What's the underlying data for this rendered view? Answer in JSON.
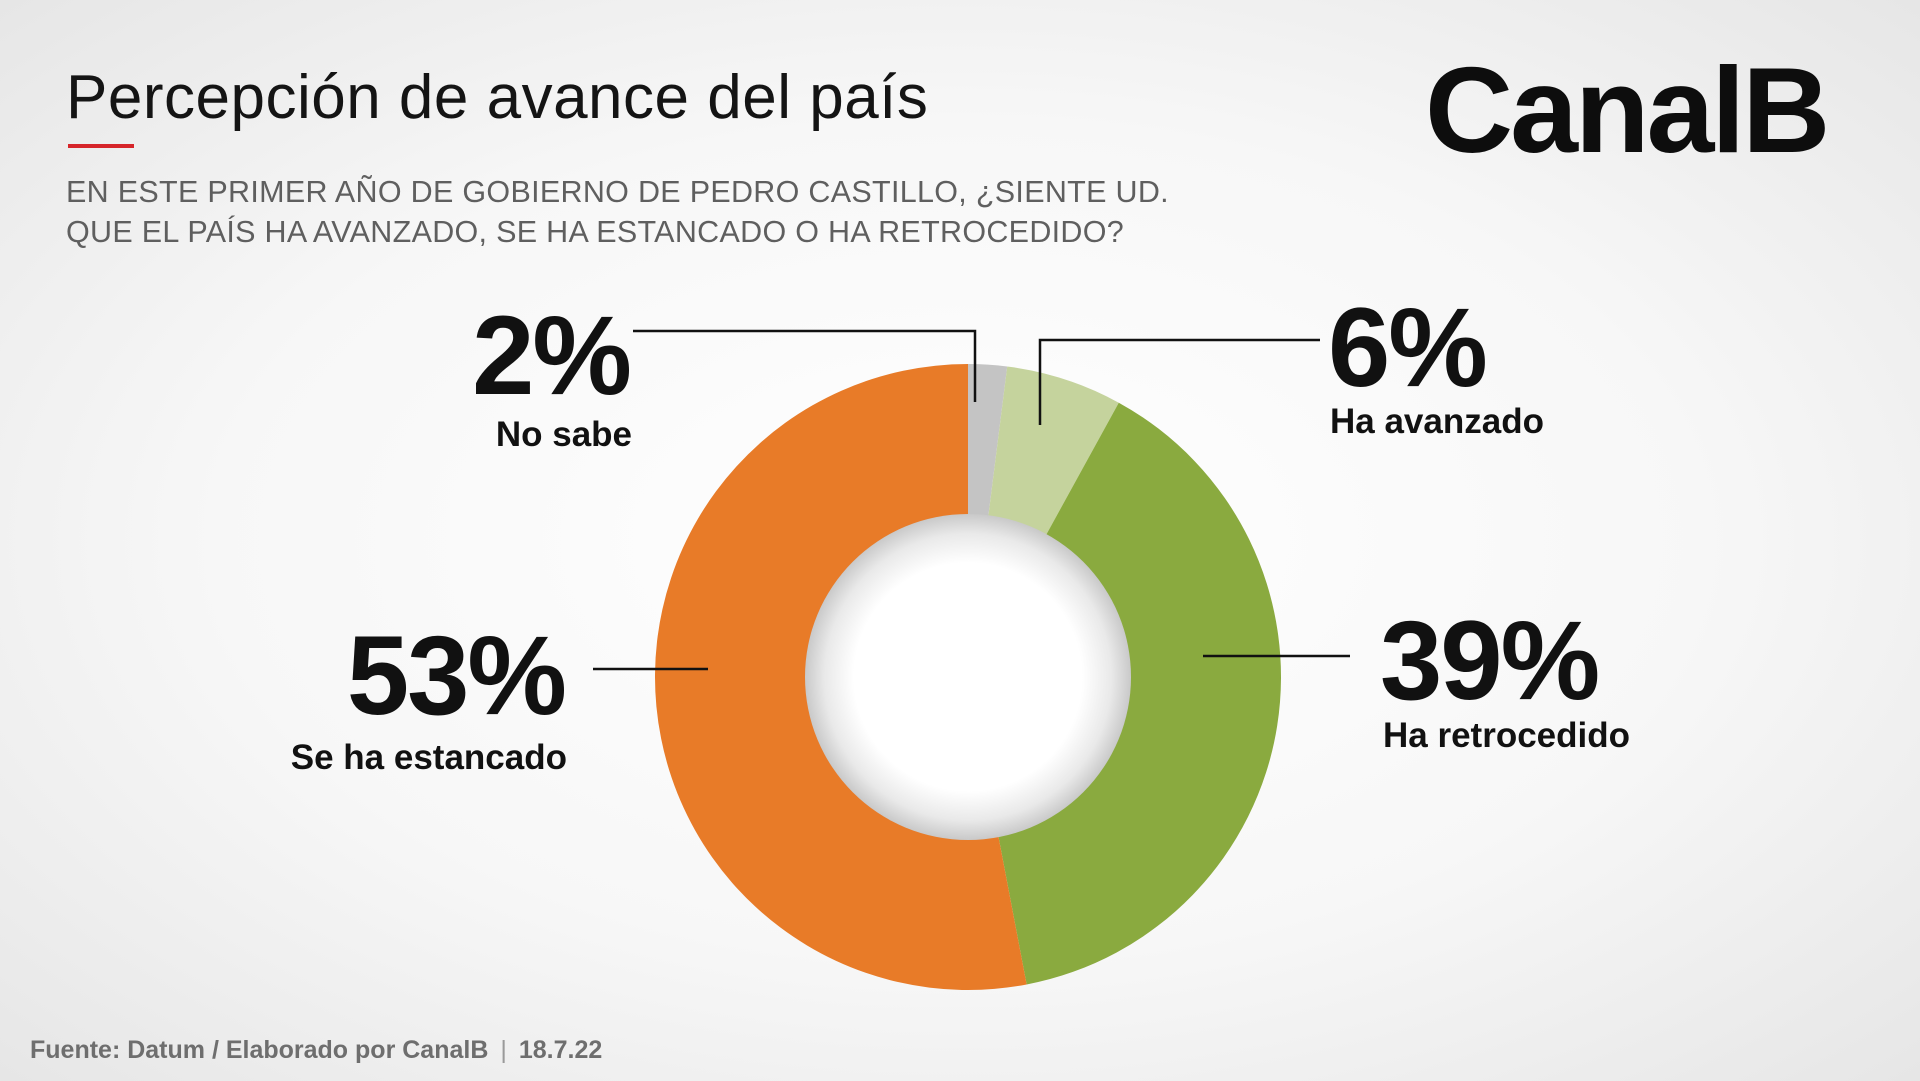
{
  "header": {
    "title": "Percepción de avance del país",
    "subtitle_line1": "EN ESTE PRIMER AÑO DE GOBIERNO DE PEDRO CASTILLO, ¿SIENTE UD.",
    "subtitle_line2": "QUE EL PAÍS HA AVANZADO, SE HA ESTANCADO O HA RETROCEDIDO?",
    "accent_color": "#d6252a"
  },
  "brand": {
    "logo_text": "CanalB"
  },
  "chart_data": {
    "type": "pie",
    "variant": "donut",
    "title": "Percepción de avance del país",
    "slices": [
      {
        "label": "No sabe",
        "value": 2,
        "display": "2%",
        "color": "#c4c4c4"
      },
      {
        "label": "Ha avanzado",
        "value": 6,
        "display": "6%",
        "color": "#c5d39d"
      },
      {
        "label": "Ha retrocedido",
        "value": 39,
        "display": "39%",
        "color": "#8aaa3f"
      },
      {
        "label": "Se ha estancado",
        "value": 53,
        "display": "53%",
        "color": "#e87b28"
      }
    ],
    "start": "top",
    "direction": "clockwise"
  },
  "footer": {
    "source": "Fuente: Datum / Elaborado por CanalB",
    "separator": "|",
    "date": "18.7.22"
  }
}
